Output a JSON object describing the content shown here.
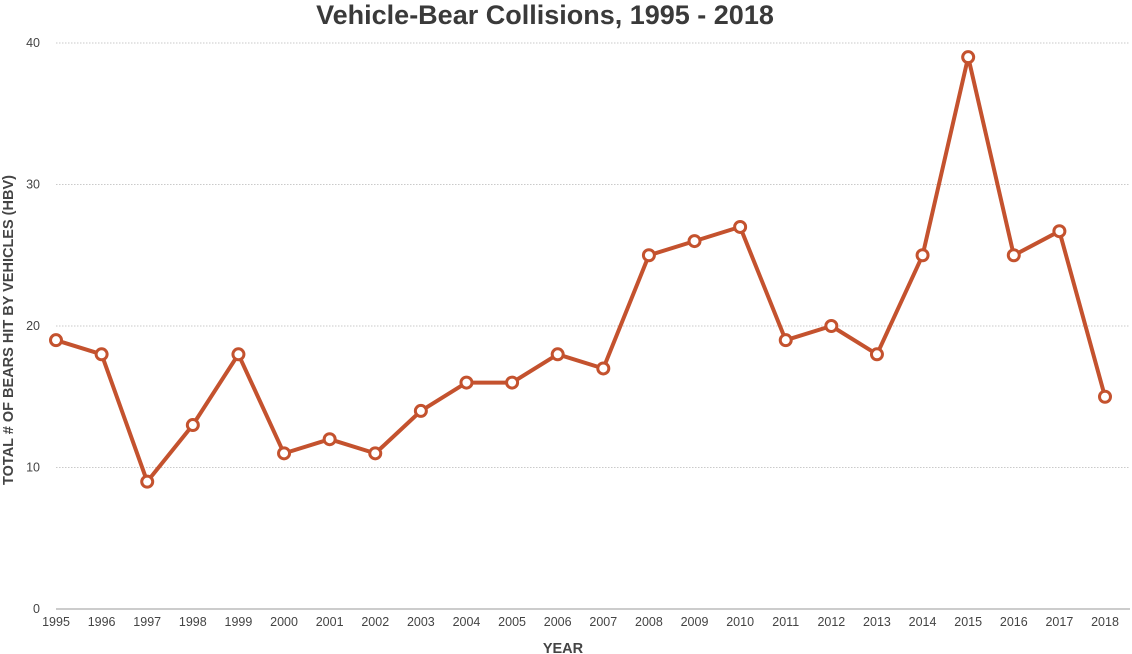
{
  "chart_data": {
    "type": "line",
    "title": "Vehicle-Bear Collisions, 1995 - 2018",
    "xlabel": "YEAR",
    "ylabel": "TOTAL # OF BEARS HIT BY VEHICLES  (HBV)",
    "ylim": [
      0,
      40
    ],
    "yticks": [
      0,
      10,
      20,
      30,
      40
    ],
    "grid": true,
    "legend": "none",
    "categories": [
      "1995",
      "1996",
      "1997",
      "1998",
      "1999",
      "2000",
      "2001",
      "2002",
      "2003",
      "2004",
      "2005",
      "2006",
      "2007",
      "2008",
      "2009",
      "2010",
      "2011",
      "2012",
      "2013",
      "2014",
      "2015",
      "2016",
      "2017",
      "2018"
    ],
    "series": [
      {
        "color": "#c4522e",
        "values": [
          19,
          18,
          9,
          13,
          18,
          11,
          12,
          11,
          14,
          16,
          16,
          18,
          17,
          25,
          26,
          27,
          19,
          20,
          18,
          25,
          39,
          25,
          26.7,
          15
        ]
      }
    ]
  }
}
